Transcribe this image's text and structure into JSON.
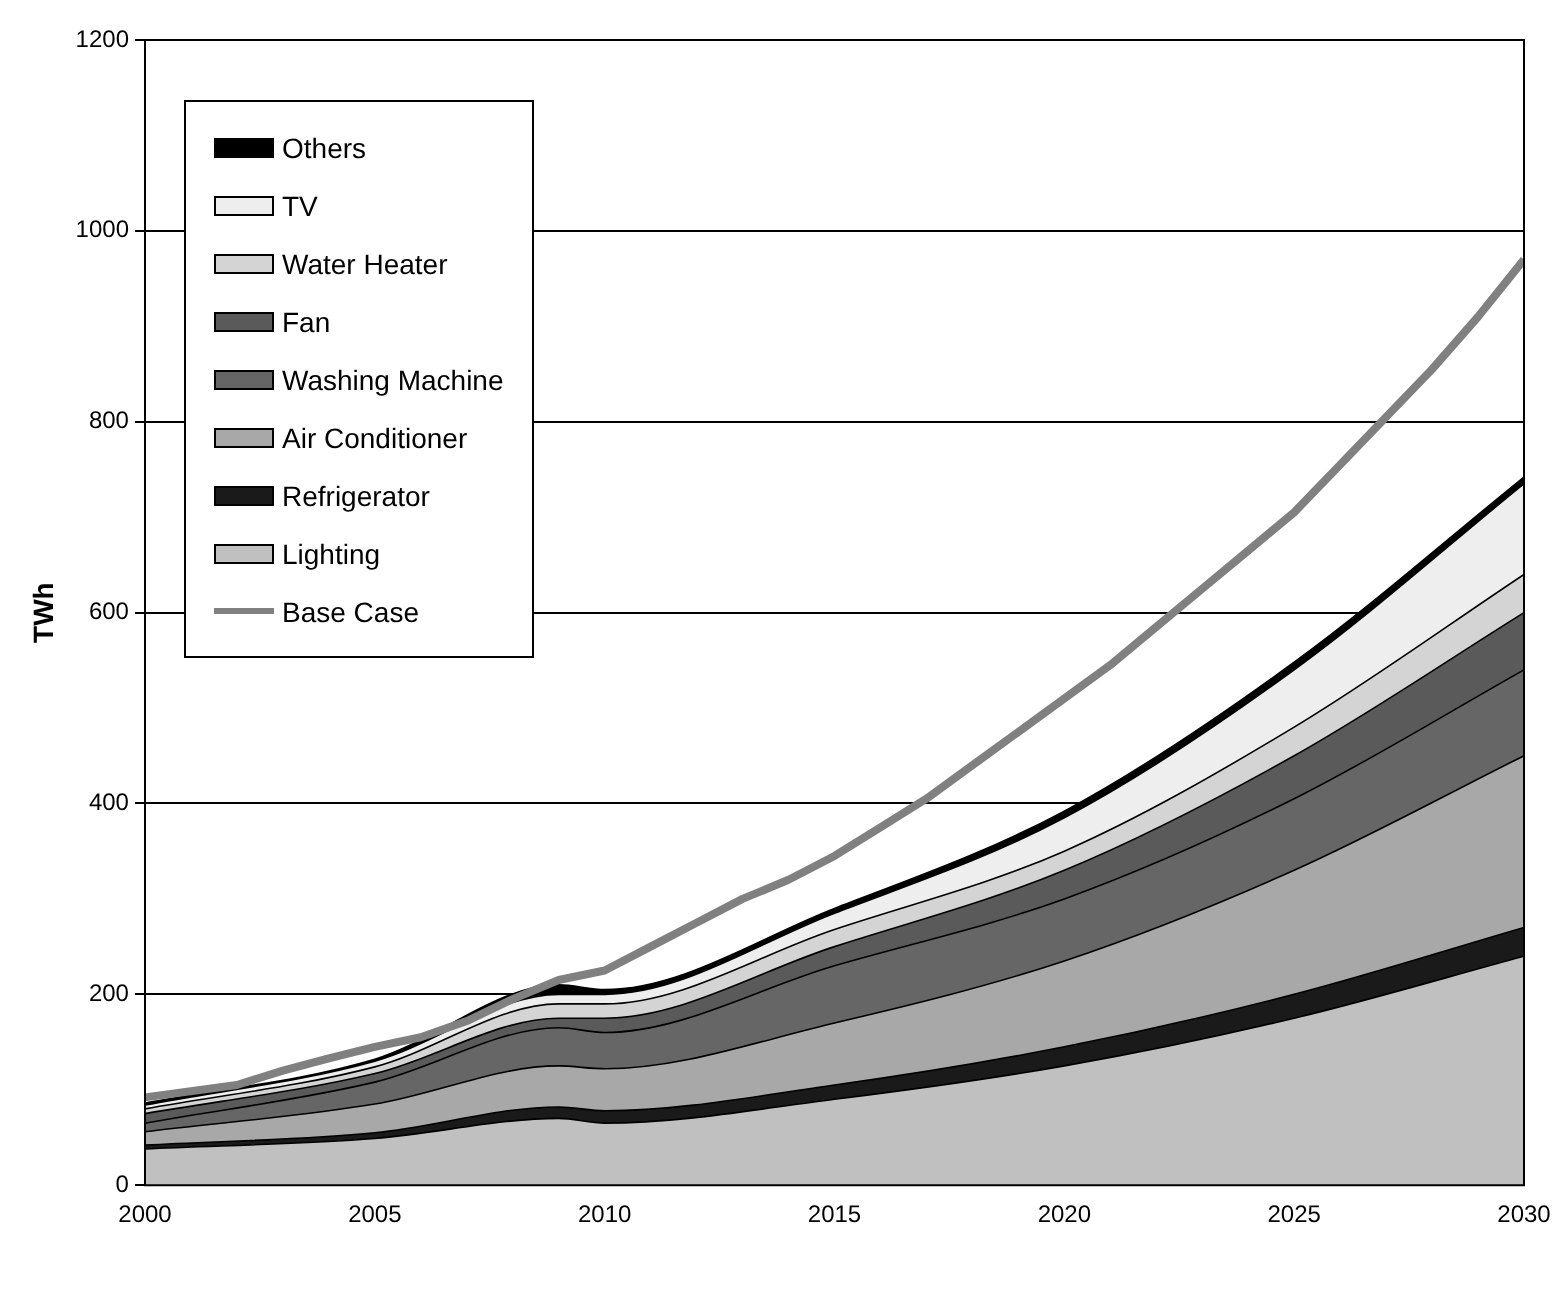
{
  "chart_data": {
    "type": "area",
    "stacked": true,
    "ylabel": "TWh",
    "x": [
      2000,
      2005,
      2009,
      2010,
      2015,
      2020,
      2025,
      2030
    ],
    "xlim": [
      2000,
      2030
    ],
    "xticks": [
      2000,
      2005,
      2010,
      2015,
      2020,
      2025,
      2030
    ],
    "ylim": [
      0,
      1200
    ],
    "yticks": [
      0,
      200,
      400,
      600,
      800,
      1000,
      1200
    ],
    "grid": "y",
    "legend": "top left",
    "series": [
      {
        "name": "Lighting",
        "color": "#c0c0c0",
        "values": [
          38,
          49,
          70,
          65,
          90,
          125,
          175,
          240
        ]
      },
      {
        "name": "Refrigerator",
        "color": "#1a1a1a",
        "values": [
          4,
          6,
          12,
          13,
          15,
          20,
          25,
          30
        ]
      },
      {
        "name": "Air Conditioner",
        "color": "#a8a8a8",
        "values": [
          14,
          30,
          43,
          44,
          65,
          90,
          130,
          180
        ]
      },
      {
        "name": "Washing Machine",
        "color": "#666666",
        "values": [
          9,
          23,
          40,
          38,
          60,
          65,
          75,
          90
        ]
      },
      {
        "name": "Fan",
        "color": "#5a5a5a",
        "values": [
          10,
          9,
          10,
          15,
          20,
          30,
          45,
          60
        ]
      },
      {
        "name": "Water Heater",
        "color": "#d4d4d4",
        "values": [
          5,
          7,
          15,
          15,
          18,
          20,
          30,
          40
        ]
      },
      {
        "name": "TV",
        "color": "#eeeeee",
        "values": [
          4,
          6,
          10,
          10,
          17,
          35,
          60,
          95
        ]
      },
      {
        "name": "Others",
        "color": "#000000",
        "values": [
          2,
          2,
          10,
          5,
          5,
          7,
          8,
          7
        ]
      },
      {
        "name": "Base Case",
        "type": "line",
        "color": "#808080",
        "x": [
          2000,
          2002,
          2003,
          2004,
          2005,
          2006,
          2007,
          2008,
          2009,
          2010,
          2011,
          2012,
          2013,
          2014,
          2015,
          2016,
          2017,
          2018,
          2019,
          2020,
          2021,
          2022,
          2023,
          2024,
          2025,
          2026,
          2027,
          2028,
          2029,
          2030
        ],
        "values": [
          92,
          105,
          120,
          133,
          145,
          155,
          172,
          195,
          215,
          225,
          250,
          275,
          300,
          320,
          345,
          375,
          405,
          440,
          475,
          510,
          545,
          585,
          625,
          665,
          705,
          755,
          805,
          855,
          910,
          970
        ]
      }
    ]
  }
}
